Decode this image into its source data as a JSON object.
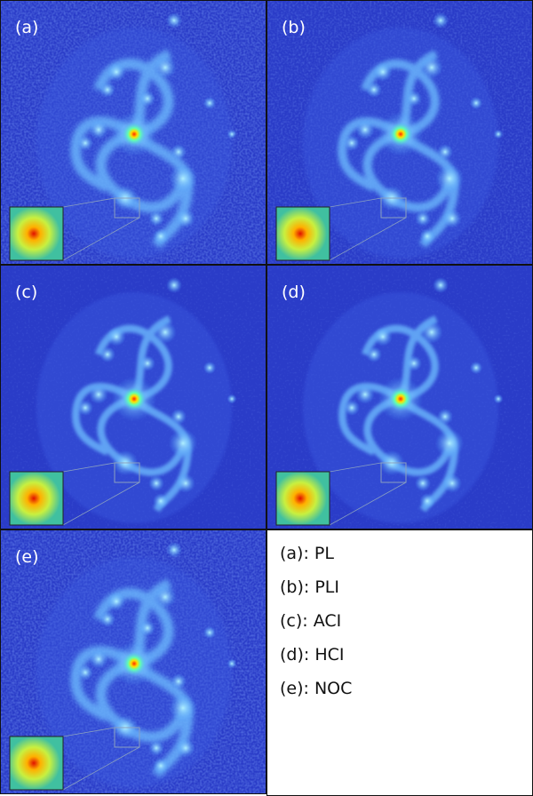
{
  "panels": [
    {
      "label": "(a)"
    },
    {
      "label": "(b)"
    },
    {
      "label": "(c)"
    },
    {
      "label": "(d)"
    },
    {
      "label": "(e)"
    }
  ],
  "legend": [
    "(a): PL",
    "(b): PLI",
    "(c): ACI",
    "(d): HCI",
    "(e): NOC"
  ]
}
